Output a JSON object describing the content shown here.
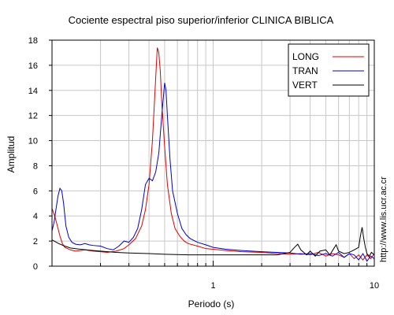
{
  "chart_data": {
    "type": "line",
    "title": "Cociente espectral piso superior/inferior  CLINICA BIBLICA",
    "xlabel": "Periodo (s)",
    "ylabel": "Amplitud",
    "x_scale": "log",
    "xlim": [
      0.1,
      10
    ],
    "ylim": [
      0,
      18
    ],
    "x_tick_labels": [
      {
        "value": 1,
        "label": "1"
      },
      {
        "value": 10,
        "label": "10"
      }
    ],
    "x_minor_ticks": [
      0.2,
      0.3,
      0.4,
      0.5,
      0.6,
      0.7,
      0.8,
      0.9,
      2,
      3,
      4,
      5,
      6,
      7,
      8,
      9
    ],
    "y_ticks": [
      0,
      2,
      4,
      6,
      8,
      10,
      12,
      14,
      16,
      18
    ],
    "grid": true,
    "legend_position": "top-right",
    "series": [
      {
        "name": "LONG",
        "color": "#e00000",
        "points": [
          [
            0.1,
            4.6
          ],
          [
            0.104,
            4.0
          ],
          [
            0.108,
            3.2
          ],
          [
            0.112,
            2.4
          ],
          [
            0.116,
            1.8
          ],
          [
            0.12,
            1.5
          ],
          [
            0.13,
            1.3
          ],
          [
            0.14,
            1.2
          ],
          [
            0.15,
            1.25
          ],
          [
            0.16,
            1.3
          ],
          [
            0.18,
            1.2
          ],
          [
            0.2,
            1.15
          ],
          [
            0.22,
            1.1
          ],
          [
            0.25,
            1.2
          ],
          [
            0.28,
            1.4
          ],
          [
            0.3,
            1.7
          ],
          [
            0.33,
            2.2
          ],
          [
            0.36,
            3.2
          ],
          [
            0.38,
            4.5
          ],
          [
            0.4,
            6.5
          ],
          [
            0.42,
            10.0
          ],
          [
            0.44,
            15.0
          ],
          [
            0.45,
            17.4
          ],
          [
            0.46,
            17.0
          ],
          [
            0.47,
            15.5
          ],
          [
            0.48,
            13.0
          ],
          [
            0.5,
            9.5
          ],
          [
            0.52,
            6.5
          ],
          [
            0.55,
            4.2
          ],
          [
            0.58,
            3.0
          ],
          [
            0.62,
            2.4
          ],
          [
            0.66,
            2.0
          ],
          [
            0.7,
            1.8
          ],
          [
            0.8,
            1.6
          ],
          [
            0.9,
            1.4
          ],
          [
            1.0,
            1.35
          ],
          [
            1.2,
            1.25
          ],
          [
            1.5,
            1.15
          ],
          [
            2.0,
            1.1
          ],
          [
            2.5,
            1.0
          ],
          [
            3.0,
            0.95
          ],
          [
            3.5,
            1.0
          ],
          [
            4.0,
            0.9
          ],
          [
            4.5,
            1.1
          ],
          [
            5.0,
            0.8
          ],
          [
            5.5,
            1.0
          ],
          [
            6.0,
            0.9
          ],
          [
            6.5,
            0.7
          ],
          [
            7.0,
            1.0
          ],
          [
            7.5,
            0.6
          ],
          [
            8.0,
            0.9
          ],
          [
            8.5,
            0.5
          ],
          [
            9.0,
            0.9
          ],
          [
            9.5,
            0.6
          ],
          [
            10.0,
            1.0
          ]
        ]
      },
      {
        "name": "TRAN",
        "color": "#0000cc",
        "points": [
          [
            0.1,
            2.8
          ],
          [
            0.103,
            3.5
          ],
          [
            0.106,
            4.6
          ],
          [
            0.109,
            5.6
          ],
          [
            0.112,
            6.2
          ],
          [
            0.115,
            6.0
          ],
          [
            0.118,
            5.0
          ],
          [
            0.122,
            3.2
          ],
          [
            0.127,
            2.3
          ],
          [
            0.133,
            1.9
          ],
          [
            0.14,
            1.75
          ],
          [
            0.15,
            1.7
          ],
          [
            0.16,
            1.8
          ],
          [
            0.17,
            1.7
          ],
          [
            0.18,
            1.65
          ],
          [
            0.2,
            1.6
          ],
          [
            0.22,
            1.4
          ],
          [
            0.24,
            1.3
          ],
          [
            0.26,
            1.6
          ],
          [
            0.28,
            2.0
          ],
          [
            0.3,
            1.9
          ],
          [
            0.32,
            2.3
          ],
          [
            0.34,
            3.0
          ],
          [
            0.36,
            4.5
          ],
          [
            0.38,
            6.5
          ],
          [
            0.4,
            7.0
          ],
          [
            0.42,
            6.8
          ],
          [
            0.44,
            7.5
          ],
          [
            0.46,
            9.0
          ],
          [
            0.48,
            12.0
          ],
          [
            0.5,
            14.6
          ],
          [
            0.51,
            14.0
          ],
          [
            0.52,
            12.0
          ],
          [
            0.54,
            8.5
          ],
          [
            0.56,
            6.0
          ],
          [
            0.6,
            4.2
          ],
          [
            0.64,
            3.0
          ],
          [
            0.68,
            2.5
          ],
          [
            0.72,
            2.2
          ],
          [
            0.8,
            1.9
          ],
          [
            0.9,
            1.7
          ],
          [
            1.0,
            1.5
          ],
          [
            1.2,
            1.35
          ],
          [
            1.5,
            1.25
          ],
          [
            2.0,
            1.15
          ],
          [
            2.5,
            1.1
          ],
          [
            3.0,
            1.05
          ],
          [
            3.5,
            0.95
          ],
          [
            4.0,
            1.0
          ],
          [
            4.5,
            0.85
          ],
          [
            5.0,
            1.0
          ],
          [
            5.5,
            0.8
          ],
          [
            6.0,
            1.1
          ],
          [
            6.5,
            0.7
          ],
          [
            7.0,
            1.0
          ],
          [
            7.5,
            0.9
          ],
          [
            8.0,
            0.5
          ],
          [
            8.5,
            1.0
          ],
          [
            9.0,
            0.4
          ],
          [
            9.5,
            0.8
          ],
          [
            10.0,
            0.6
          ]
        ]
      },
      {
        "name": "VERT",
        "color": "#000000",
        "points": [
          [
            0.1,
            2.1
          ],
          [
            0.11,
            1.8
          ],
          [
            0.12,
            1.6
          ],
          [
            0.13,
            1.45
          ],
          [
            0.15,
            1.35
          ],
          [
            0.18,
            1.25
          ],
          [
            0.2,
            1.2
          ],
          [
            0.25,
            1.1
          ],
          [
            0.3,
            1.05
          ],
          [
            0.4,
            1.0
          ],
          [
            0.5,
            0.95
          ],
          [
            0.7,
            0.9
          ],
          [
            1.0,
            0.9
          ],
          [
            1.5,
            0.9
          ],
          [
            2.0,
            0.9
          ],
          [
            2.5,
            0.9
          ],
          [
            3.0,
            1.1
          ],
          [
            3.2,
            1.5
          ],
          [
            3.35,
            1.75
          ],
          [
            3.5,
            1.3
          ],
          [
            3.8,
            0.9
          ],
          [
            4.0,
            1.2
          ],
          [
            4.3,
            0.8
          ],
          [
            4.6,
            1.2
          ],
          [
            5.0,
            1.3
          ],
          [
            5.3,
            0.9
          ],
          [
            5.6,
            1.4
          ],
          [
            5.8,
            1.7
          ],
          [
            6.0,
            1.2
          ],
          [
            6.5,
            1.0
          ],
          [
            7.0,
            1.1
          ],
          [
            7.5,
            1.3
          ],
          [
            8.0,
            1.5
          ],
          [
            8.2,
            2.4
          ],
          [
            8.4,
            3.1
          ],
          [
            8.6,
            2.2
          ],
          [
            8.8,
            1.5
          ],
          [
            9.0,
            1.0
          ],
          [
            9.3,
            0.8
          ],
          [
            9.6,
            1.1
          ],
          [
            10.0,
            0.9
          ]
        ]
      }
    ]
  },
  "side_text": "http://www.lis.ucr.ac.cr"
}
